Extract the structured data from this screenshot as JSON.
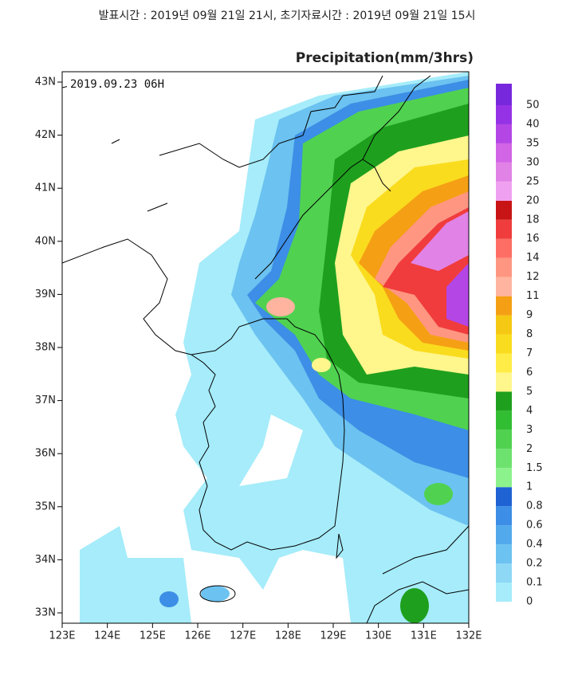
{
  "header": {
    "text": "발표시간 : 2019년 09월 21일 21시, 초기자료시간 : 2019년 09월 21일 15시"
  },
  "map": {
    "title": "Precipitation(mm/3hrs)",
    "valid_time": "2019.09.23 06H",
    "lat_labels": [
      "43N",
      "42N",
      "41N",
      "40N",
      "39N",
      "38N",
      "37N",
      "36N",
      "35N",
      "34N",
      "33N"
    ],
    "lon_labels": [
      "123E",
      "124E",
      "125E",
      "126E",
      "127E",
      "128E",
      "129E",
      "130E",
      "131E",
      "132E"
    ]
  },
  "colorbar": {
    "levels": [
      {
        "label": "0",
        "color": "#a6ecfa"
      },
      {
        "label": "0.1",
        "color": "#8ed8f6"
      },
      {
        "label": "0.2",
        "color": "#6cc2f0"
      },
      {
        "label": "0.4",
        "color": "#52aaec"
      },
      {
        "label": "0.6",
        "color": "#3c8ee6"
      },
      {
        "label": "0.8",
        "color": "#1e62d4"
      },
      {
        "label": "1",
        "color": "#8cf28c"
      },
      {
        "label": "1.5",
        "color": "#6ee26e"
      },
      {
        "label": "2",
        "color": "#50d250"
      },
      {
        "label": "3",
        "color": "#32be32"
      },
      {
        "label": "4",
        "color": "#1ea01e"
      },
      {
        "label": "5",
        "color": "#fff68c"
      },
      {
        "label": "6",
        "color": "#ffec46"
      },
      {
        "label": "7",
        "color": "#fadc1e"
      },
      {
        "label": "8",
        "color": "#f5c814"
      },
      {
        "label": "9",
        "color": "#f5a014"
      },
      {
        "label": "11",
        "color": "#ffb4a0"
      },
      {
        "label": "12",
        "color": "#ff9682"
      },
      {
        "label": "14",
        "color": "#ff6e64"
      },
      {
        "label": "16",
        "color": "#f03c3c"
      },
      {
        "label": "18",
        "color": "#c81414"
      },
      {
        "label": "20",
        "color": "#f0a0f0"
      },
      {
        "label": "25",
        "color": "#e182e6"
      },
      {
        "label": "30",
        "color": "#d264e6"
      },
      {
        "label": "35",
        "color": "#b446e6"
      },
      {
        "label": "40",
        "color": "#9632e6"
      },
      {
        "label": "50",
        "color": "#7828dc"
      }
    ]
  }
}
